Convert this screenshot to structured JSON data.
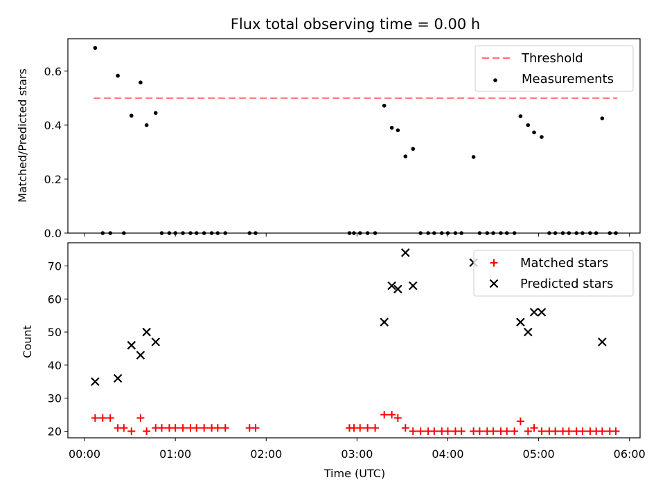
{
  "title": "Flux total observing time = 0.00 h",
  "chart_data": [
    {
      "type": "scatter",
      "ylabel": "Matched/Predicted stars",
      "xlabel": "",
      "ylim": [
        0,
        0.72
      ],
      "xlim": [
        "-00:11",
        "06:07"
      ],
      "yticks": [
        0.0,
        0.2,
        0.4,
        0.6
      ],
      "ytick_labels": [
        "0.0",
        "0.2",
        "0.4",
        "0.6"
      ],
      "grid": false,
      "legend_position": "top-right",
      "threshold": {
        "name": "Threshold",
        "value": 0.5,
        "x_range": [
          "00:06",
          "05:52"
        ],
        "color": "#ff6f6f",
        "style": "dashed"
      },
      "series": [
        {
          "name": "Measurements",
          "color": "#000000",
          "marker": "dot",
          "points": [
            {
              "x": "00:07",
              "y": 0.686
            },
            {
              "x": "00:22",
              "y": 0.583
            },
            {
              "x": "00:31",
              "y": 0.435
            },
            {
              "x": "00:37",
              "y": 0.558
            },
            {
              "x": "00:41",
              "y": 0.4
            },
            {
              "x": "00:47",
              "y": 0.445
            },
            {
              "x": "03:18",
              "y": 0.472
            },
            {
              "x": "03:23",
              "y": 0.39
            },
            {
              "x": "03:27",
              "y": 0.381
            },
            {
              "x": "03:32",
              "y": 0.284
            },
            {
              "x": "03:37",
              "y": 0.312
            },
            {
              "x": "04:17",
              "y": 0.282
            },
            {
              "x": "04:48",
              "y": 0.433
            },
            {
              "x": "04:53",
              "y": 0.4
            },
            {
              "x": "04:57",
              "y": 0.373
            },
            {
              "x": "05:02",
              "y": 0.356
            },
            {
              "x": "05:42",
              "y": 0.425
            },
            {
              "x": "00:12",
              "y": 0
            },
            {
              "x": "00:17",
              "y": 0
            },
            {
              "x": "00:26",
              "y": 0
            },
            {
              "x": "00:51",
              "y": 0
            },
            {
              "x": "00:56",
              "y": 0
            },
            {
              "x": "01:00",
              "y": 0
            },
            {
              "x": "01:05",
              "y": 0
            },
            {
              "x": "01:10",
              "y": 0
            },
            {
              "x": "01:14",
              "y": 0
            },
            {
              "x": "01:19",
              "y": 0
            },
            {
              "x": "01:24",
              "y": 0
            },
            {
              "x": "01:28",
              "y": 0
            },
            {
              "x": "01:33",
              "y": 0
            },
            {
              "x": "01:49",
              "y": 0
            },
            {
              "x": "01:53",
              "y": 0
            },
            {
              "x": "02:55",
              "y": 0
            },
            {
              "x": "02:58",
              "y": 0
            },
            {
              "x": "03:02",
              "y": 0
            },
            {
              "x": "03:07",
              "y": 0
            },
            {
              "x": "03:12",
              "y": 0
            },
            {
              "x": "03:42",
              "y": 0
            },
            {
              "x": "03:47",
              "y": 0
            },
            {
              "x": "03:51",
              "y": 0
            },
            {
              "x": "03:56",
              "y": 0
            },
            {
              "x": "04:00",
              "y": 0
            },
            {
              "x": "04:05",
              "y": 0
            },
            {
              "x": "04:09",
              "y": 0
            },
            {
              "x": "04:21",
              "y": 0
            },
            {
              "x": "04:26",
              "y": 0
            },
            {
              "x": "04:30",
              "y": 0
            },
            {
              "x": "04:35",
              "y": 0
            },
            {
              "x": "04:39",
              "y": 0
            },
            {
              "x": "04:44",
              "y": 0
            },
            {
              "x": "05:07",
              "y": 0
            },
            {
              "x": "05:11",
              "y": 0
            },
            {
              "x": "05:16",
              "y": 0
            },
            {
              "x": "05:20",
              "y": 0
            },
            {
              "x": "05:25",
              "y": 0
            },
            {
              "x": "05:29",
              "y": 0
            },
            {
              "x": "05:34",
              "y": 0
            },
            {
              "x": "05:38",
              "y": 0
            },
            {
              "x": "05:47",
              "y": 0
            },
            {
              "x": "05:51",
              "y": 0
            }
          ]
        }
      ]
    },
    {
      "type": "scatter",
      "ylabel": "Count",
      "xlabel": "Time (UTC)",
      "ylim": [
        18,
        77
      ],
      "xlim": [
        "-00:11",
        "06:07"
      ],
      "yticks": [
        20,
        30,
        40,
        50,
        60,
        70
      ],
      "ytick_labels": [
        "20",
        "30",
        "40",
        "50",
        "60",
        "70"
      ],
      "xticks": [
        "00:00",
        "01:00",
        "02:00",
        "03:00",
        "04:00",
        "05:00",
        "06:00"
      ],
      "xtick_labels": [
        "00:00",
        "01:00",
        "02:00",
        "03:00",
        "04:00",
        "05:00",
        "06:00"
      ],
      "grid": false,
      "legend_position": "top-right",
      "series": [
        {
          "name": "Matched stars",
          "color": "#ff0000",
          "marker": "plus",
          "points": [
            {
              "x": "00:07",
              "y": 24
            },
            {
              "x": "00:12",
              "y": 24
            },
            {
              "x": "00:17",
              "y": 24
            },
            {
              "x": "00:22",
              "y": 21
            },
            {
              "x": "00:26",
              "y": 21
            },
            {
              "x": "00:31",
              "y": 20
            },
            {
              "x": "00:37",
              "y": 24
            },
            {
              "x": "00:41",
              "y": 20
            },
            {
              "x": "00:47",
              "y": 21
            },
            {
              "x": "00:51",
              "y": 21
            },
            {
              "x": "00:56",
              "y": 21
            },
            {
              "x": "01:00",
              "y": 21
            },
            {
              "x": "01:05",
              "y": 21
            },
            {
              "x": "01:10",
              "y": 21
            },
            {
              "x": "01:14",
              "y": 21
            },
            {
              "x": "01:19",
              "y": 21
            },
            {
              "x": "01:24",
              "y": 21
            },
            {
              "x": "01:28",
              "y": 21
            },
            {
              "x": "01:33",
              "y": 21
            },
            {
              "x": "01:49",
              "y": 21
            },
            {
              "x": "01:53",
              "y": 21
            },
            {
              "x": "02:55",
              "y": 21
            },
            {
              "x": "02:58",
              "y": 21
            },
            {
              "x": "03:02",
              "y": 21
            },
            {
              "x": "03:07",
              "y": 21
            },
            {
              "x": "03:12",
              "y": 21
            },
            {
              "x": "03:18",
              "y": 25
            },
            {
              "x": "03:23",
              "y": 25
            },
            {
              "x": "03:27",
              "y": 24
            },
            {
              "x": "03:32",
              "y": 21
            },
            {
              "x": "03:37",
              "y": 20
            },
            {
              "x": "03:42",
              "y": 20
            },
            {
              "x": "03:47",
              "y": 20
            },
            {
              "x": "03:51",
              "y": 20
            },
            {
              "x": "03:56",
              "y": 20
            },
            {
              "x": "04:00",
              "y": 20
            },
            {
              "x": "04:05",
              "y": 20
            },
            {
              "x": "04:09",
              "y": 20
            },
            {
              "x": "04:17",
              "y": 20
            },
            {
              "x": "04:21",
              "y": 20
            },
            {
              "x": "04:26",
              "y": 20
            },
            {
              "x": "04:30",
              "y": 20
            },
            {
              "x": "04:35",
              "y": 20
            },
            {
              "x": "04:39",
              "y": 20
            },
            {
              "x": "04:44",
              "y": 20
            },
            {
              "x": "04:48",
              "y": 23
            },
            {
              "x": "04:53",
              "y": 20
            },
            {
              "x": "04:57",
              "y": 21
            },
            {
              "x": "05:02",
              "y": 20
            },
            {
              "x": "05:07",
              "y": 20
            },
            {
              "x": "05:11",
              "y": 20
            },
            {
              "x": "05:16",
              "y": 20
            },
            {
              "x": "05:20",
              "y": 20
            },
            {
              "x": "05:25",
              "y": 20
            },
            {
              "x": "05:29",
              "y": 20
            },
            {
              "x": "05:34",
              "y": 20
            },
            {
              "x": "05:38",
              "y": 20
            },
            {
              "x": "05:42",
              "y": 20
            },
            {
              "x": "05:47",
              "y": 20
            },
            {
              "x": "05:51",
              "y": 20
            }
          ]
        },
        {
          "name": "Predicted stars",
          "color": "#000000",
          "marker": "x",
          "points": [
            {
              "x": "00:07",
              "y": 35
            },
            {
              "x": "00:22",
              "y": 36
            },
            {
              "x": "00:31",
              "y": 46
            },
            {
              "x": "00:37",
              "y": 43
            },
            {
              "x": "00:41",
              "y": 50
            },
            {
              "x": "00:47",
              "y": 47
            },
            {
              "x": "03:18",
              "y": 53
            },
            {
              "x": "03:23",
              "y": 64
            },
            {
              "x": "03:27",
              "y": 63
            },
            {
              "x": "03:32",
              "y": 74
            },
            {
              "x": "03:37",
              "y": 64
            },
            {
              "x": "04:17",
              "y": 71
            },
            {
              "x": "04:48",
              "y": 53
            },
            {
              "x": "04:53",
              "y": 50
            },
            {
              "x": "04:57",
              "y": 56
            },
            {
              "x": "05:02",
              "y": 56
            },
            {
              "x": "05:42",
              "y": 47
            }
          ]
        }
      ]
    }
  ]
}
